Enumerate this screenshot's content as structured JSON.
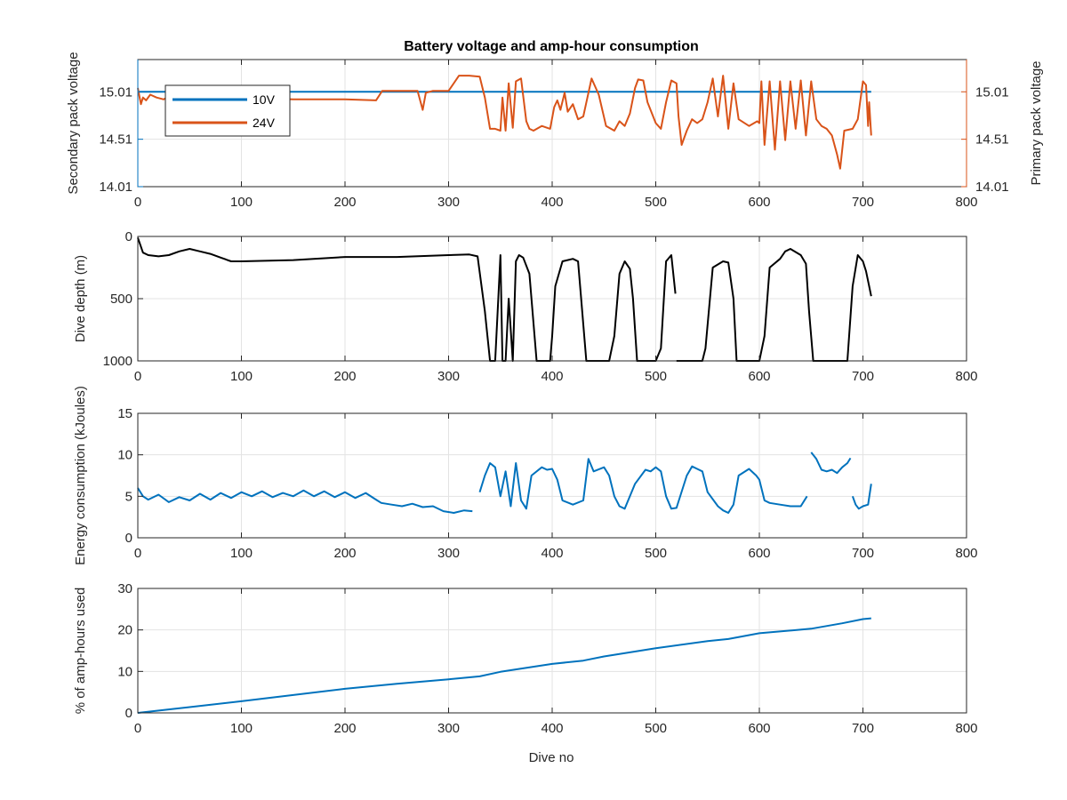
{
  "figure": {
    "title": "Battery voltage and amp-hour consumption",
    "xlabel": "Dive no",
    "background": "#ffffff",
    "colors": {
      "blue": "#0072bd",
      "orange": "#d95319",
      "black": "#000000",
      "grid": "#e3e3e3",
      "axis": "#262626"
    }
  },
  "chart_data": [
    {
      "id": "voltage",
      "type": "line",
      "title": "Battery voltage and amp-hour consumption",
      "xlim": [
        0,
        800
      ],
      "xticks": [
        0,
        100,
        200,
        300,
        400,
        500,
        600,
        700,
        800
      ],
      "grid": true,
      "legend": {
        "position": "top-left",
        "entries": [
          "10V",
          "24V"
        ]
      },
      "left_axis": {
        "label": "Secondary pack voltage",
        "ylim": [
          14.01,
          15.35
        ],
        "ticks": [
          14.01,
          14.51,
          15.01
        ],
        "tick_labels": [
          "14.01",
          "14.51",
          "15.01"
        ],
        "color": "#0072bd"
      },
      "right_axis": {
        "label": "Primary pack voltage",
        "ylim": [
          14.01,
          15.35
        ],
        "ticks": [
          14.01,
          14.51,
          15.01
        ],
        "tick_labels": [
          "14.01",
          "14.51",
          "15.01"
        ],
        "color": "#d95319"
      },
      "series": [
        {
          "name": "10V",
          "axis": "left",
          "color": "#0072bd",
          "x": [
            0,
            708
          ],
          "y": [
            15.01,
            15.01
          ]
        },
        {
          "name": "24V",
          "axis": "right",
          "color": "#d95319",
          "x": [
            0,
            3,
            5,
            8,
            12,
            18,
            25,
            30,
            40,
            60,
            100,
            150,
            200,
            230,
            236,
            270,
            275,
            278,
            285,
            300,
            310,
            320,
            330,
            335,
            340,
            345,
            350,
            352,
            355,
            358,
            362,
            365,
            370,
            375,
            378,
            382,
            390,
            398,
            402,
            405,
            408,
            412,
            415,
            420,
            425,
            430,
            438,
            445,
            452,
            460,
            465,
            470,
            475,
            480,
            483,
            488,
            492,
            500,
            505,
            510,
            515,
            520,
            522,
            525,
            530,
            535,
            540,
            545,
            550,
            555,
            560,
            565,
            570,
            575,
            580,
            590,
            598,
            600,
            602,
            605,
            610,
            615,
            620,
            625,
            630,
            635,
            640,
            645,
            650,
            655,
            660,
            665,
            670,
            675,
            678,
            682,
            690,
            695,
            700,
            703,
            705,
            706,
            708
          ],
          "y": [
            15.05,
            14.88,
            14.95,
            14.92,
            14.98,
            14.95,
            14.93,
            14.96,
            14.94,
            14.95,
            14.95,
            14.93,
            14.93,
            14.92,
            15.02,
            15.02,
            14.82,
            15.0,
            15.02,
            15.02,
            15.18,
            15.18,
            15.17,
            14.95,
            14.62,
            14.62,
            14.6,
            14.95,
            14.6,
            15.1,
            14.63,
            15.12,
            15.15,
            14.7,
            14.62,
            14.6,
            14.65,
            14.62,
            14.85,
            14.92,
            14.82,
            15.0,
            14.8,
            14.88,
            14.72,
            14.75,
            15.15,
            14.98,
            14.65,
            14.6,
            14.7,
            14.65,
            14.78,
            15.05,
            15.14,
            15.13,
            14.9,
            14.68,
            14.62,
            14.9,
            15.13,
            15.1,
            14.75,
            14.45,
            14.6,
            14.72,
            14.68,
            14.72,
            14.9,
            15.15,
            14.75,
            15.18,
            14.62,
            15.1,
            14.72,
            14.65,
            14.7,
            14.68,
            15.12,
            14.45,
            15.12,
            14.4,
            15.12,
            14.5,
            15.12,
            14.62,
            15.13,
            14.55,
            15.12,
            14.72,
            14.65,
            14.62,
            14.55,
            14.35,
            14.2,
            14.6,
            14.62,
            14.72,
            15.12,
            15.08,
            14.65,
            14.9,
            14.55
          ]
        }
      ]
    },
    {
      "id": "depth",
      "type": "line",
      "ylabel": "Dive depth (m)",
      "xlim": [
        0,
        800
      ],
      "ylim": [
        0,
        1000
      ],
      "y_reversed": true,
      "xticks": [
        0,
        100,
        200,
        300,
        400,
        500,
        600,
        700,
        800
      ],
      "yticks": [
        0,
        500,
        1000
      ],
      "grid": true,
      "series": [
        {
          "name": "",
          "color": "#000000",
          "x": [
            0,
            5,
            10,
            20,
            30,
            40,
            50,
            60,
            70,
            80,
            90,
            100,
            150,
            200,
            250,
            300,
            320,
            328,
            335,
            340,
            345,
            348,
            350,
            352,
            355,
            358,
            362,
            365,
            368,
            372,
            378,
            385,
            398,
            400,
            403,
            410,
            420,
            425,
            428,
            433,
            435,
            438,
            455,
            460,
            465,
            470,
            475,
            478,
            482,
            485,
            500,
            505,
            510,
            515,
            519
          ],
          "y": [
            10,
            130,
            150,
            160,
            150,
            120,
            100,
            120,
            140,
            170,
            200,
            200,
            190,
            165,
            165,
            150,
            145,
            160,
            600,
            1000,
            1000,
            500,
            150,
            1000,
            1000,
            500,
            1000,
            200,
            150,
            170,
            300,
            1000,
            1000,
            800,
            400,
            200,
            180,
            200,
            500,
            1000,
            1000,
            1000,
            1000,
            800,
            300,
            200,
            260,
            500,
            1000,
            1000,
            1000,
            900,
            200,
            150,
            460
          ]
        },
        {
          "name": "",
          "color": "#000000",
          "x": [
            520,
            545,
            548,
            555,
            565,
            570,
            575,
            578,
            600,
            605,
            610,
            620,
            625,
            630,
            640,
            645,
            648,
            652,
            655,
            685,
            690,
            695,
            700,
            703,
            706,
            708
          ],
          "y": [
            1000,
            1000,
            900,
            250,
            200,
            210,
            500,
            1000,
            1000,
            800,
            250,
            180,
            120,
            100,
            150,
            220,
            600,
            1000,
            1000,
            1000,
            400,
            150,
            200,
            280,
            400,
            480
          ]
        }
      ]
    },
    {
      "id": "energy",
      "type": "line",
      "ylabel": "Energy consumption (kJoules)",
      "xlim": [
        0,
        800
      ],
      "ylim": [
        0,
        15
      ],
      "xticks": [
        0,
        100,
        200,
        300,
        400,
        500,
        600,
        700,
        800
      ],
      "yticks": [
        0,
        5,
        10,
        15
      ],
      "grid": true,
      "series": [
        {
          "name": "",
          "color": "#0072bd",
          "x": [
            0,
            5,
            10,
            20,
            30,
            40,
            50,
            60,
            70,
            80,
            90,
            100,
            110,
            120,
            130,
            140,
            150,
            160,
            170,
            180,
            190,
            200,
            210,
            220,
            230,
            235,
            245,
            255,
            265,
            275,
            285,
            295,
            305,
            315,
            323
          ],
          "y": [
            6.0,
            5.0,
            4.6,
            5.2,
            4.3,
            4.9,
            4.5,
            5.3,
            4.6,
            5.4,
            4.8,
            5.5,
            5.0,
            5.6,
            4.9,
            5.4,
            5.0,
            5.7,
            5.0,
            5.6,
            4.9,
            5.5,
            4.8,
            5.4,
            4.6,
            4.2,
            4.0,
            3.8,
            4.1,
            3.7,
            3.8,
            3.2,
            3.0,
            3.3,
            3.2
          ]
        },
        {
          "name": "",
          "color": "#0072bd",
          "x": [
            330,
            335,
            340,
            345,
            350,
            355,
            360,
            365,
            370,
            375,
            380,
            390,
            395,
            400,
            405,
            410,
            420,
            430,
            435,
            440,
            450,
            455,
            460,
            465,
            470,
            480,
            490,
            495,
            500,
            505,
            510,
            515,
            520,
            530,
            535,
            540,
            545,
            550,
            560,
            565,
            570,
            575,
            580,
            590,
            597,
            600,
            605,
            610,
            620,
            630,
            640,
            646
          ],
          "y": [
            5.5,
            7.5,
            9.0,
            8.5,
            5.0,
            8.0,
            3.8,
            9.0,
            4.5,
            3.5,
            7.5,
            8.5,
            8.2,
            8.3,
            7.0,
            4.5,
            4.0,
            4.5,
            9.5,
            8.0,
            8.5,
            7.5,
            5.0,
            3.8,
            3.5,
            6.5,
            8.2,
            8.0,
            8.5,
            8.0,
            5.0,
            3.5,
            3.6,
            7.5,
            8.6,
            8.3,
            8.0,
            5.5,
            3.8,
            3.3,
            3.0,
            4.0,
            7.5,
            8.3,
            7.5,
            7.0,
            4.5,
            4.2,
            4.0,
            3.8,
            3.8,
            5.0
          ]
        },
        {
          "name": "",
          "color": "#0072bd",
          "x": [
            650,
            655,
            660,
            665,
            670,
            675,
            680,
            685,
            688
          ],
          "y": [
            10.3,
            9.5,
            8.2,
            8.0,
            8.2,
            7.8,
            8.5,
            9.0,
            9.6
          ]
        },
        {
          "name": "",
          "color": "#0072bd",
          "x": [
            690,
            693,
            696,
            700,
            705,
            708
          ],
          "y": [
            5.0,
            4.0,
            3.5,
            3.8,
            4.0,
            6.5
          ]
        }
      ]
    },
    {
      "id": "amphours",
      "type": "line",
      "ylabel": "% of amp-hours used",
      "xlabel": "Dive no",
      "xlim": [
        0,
        800
      ],
      "ylim": [
        0,
        30
      ],
      "xticks": [
        0,
        100,
        200,
        300,
        400,
        500,
        600,
        700,
        800
      ],
      "yticks": [
        0,
        10,
        20,
        30
      ],
      "grid": true,
      "series": [
        {
          "name": "",
          "color": "#0072bd",
          "x": [
            0,
            50,
            100,
            150,
            200,
            250,
            300,
            330,
            350,
            400,
            430,
            450,
            500,
            550,
            570,
            600,
            650,
            680,
            700,
            708
          ],
          "y": [
            0,
            1.4,
            2.8,
            4.3,
            5.8,
            7.0,
            8.1,
            8.8,
            9.9,
            11.8,
            12.6,
            13.6,
            15.6,
            17.3,
            17.8,
            19.2,
            20.3,
            21.6,
            22.6,
            22.8
          ]
        }
      ]
    }
  ]
}
